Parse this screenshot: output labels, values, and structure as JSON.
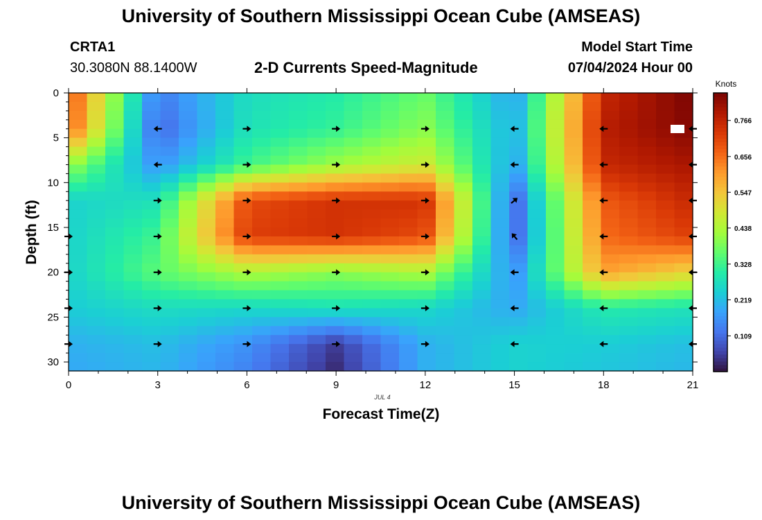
{
  "header": {
    "title": "University of Southern Mississippi Ocean Cube (AMSEAS)",
    "station": "CRTA1",
    "coords": "30.3080N  88.1400W",
    "subtitle": "2-D Currents Speed-Magnitude",
    "model_start_label": "Model Start Time",
    "model_start_value": "07/04/2024 Hour 00"
  },
  "footer": {
    "title": "University of Southern Mississippi Ocean Cube (AMSEAS)"
  },
  "chart_data": {
    "type": "heatmap",
    "title": "2-D Currents Speed-Magnitude",
    "xlabel": "Forecast Time(Z)",
    "ylabel": "Depth (ft)",
    "date_label": "JUL 4",
    "xlim": [
      0,
      21
    ],
    "ylim": [
      0,
      31
    ],
    "x_ticks": [
      0,
      3,
      6,
      9,
      12,
      15,
      18,
      21
    ],
    "y_ticks": [
      0,
      5,
      10,
      15,
      20,
      25,
      30
    ],
    "colorbar": {
      "label": "Knots",
      "range": [
        0.0,
        0.85
      ],
      "ticks": [
        "0.766",
        "0.656",
        "0.547",
        "0.438",
        "0.328",
        "0.219",
        "0.109"
      ],
      "tick_values": [
        0.766,
        0.656,
        0.547,
        0.438,
        0.328,
        0.219,
        0.109
      ]
    },
    "times": [
      0,
      3,
      6,
      9,
      12,
      15,
      18,
      21
    ],
    "depths": [
      0,
      4,
      8,
      12,
      16,
      20,
      24,
      28,
      31
    ],
    "speed_knots": [
      [
        0.7,
        0.13,
        0.27,
        0.3,
        0.37,
        0.18,
        0.76,
        0.85
      ],
      [
        0.68,
        0.1,
        0.28,
        0.32,
        0.4,
        0.2,
        0.78,
        0.84
      ],
      [
        0.42,
        0.16,
        0.33,
        0.42,
        0.48,
        0.18,
        0.76,
        0.8
      ],
      [
        0.25,
        0.28,
        0.7,
        0.74,
        0.74,
        0.1,
        0.68,
        0.76
      ],
      [
        0.25,
        0.33,
        0.72,
        0.74,
        0.7,
        0.1,
        0.66,
        0.72
      ],
      [
        0.25,
        0.36,
        0.44,
        0.4,
        0.44,
        0.16,
        0.6,
        0.52
      ],
      [
        0.24,
        0.27,
        0.26,
        0.28,
        0.26,
        0.19,
        0.3,
        0.28
      ],
      [
        0.2,
        0.22,
        0.16,
        0.05,
        0.2,
        0.25,
        0.24,
        0.22
      ],
      [
        0.19,
        0.21,
        0.14,
        0.03,
        0.2,
        0.25,
        0.23,
        0.21
      ]
    ],
    "vectors": [
      {
        "t": 3,
        "d": 4,
        "dir": "W"
      },
      {
        "t": 6,
        "d": 4,
        "dir": "E"
      },
      {
        "t": 9,
        "d": 4,
        "dir": "E"
      },
      {
        "t": 12,
        "d": 4,
        "dir": "E"
      },
      {
        "t": 15,
        "d": 4,
        "dir": "W"
      },
      {
        "t": 18,
        "d": 4,
        "dir": "W"
      },
      {
        "t": 21,
        "d": 4,
        "dir": "W"
      },
      {
        "t": 3,
        "d": 8,
        "dir": "W"
      },
      {
        "t": 6,
        "d": 8,
        "dir": "E"
      },
      {
        "t": 9,
        "d": 8,
        "dir": "E"
      },
      {
        "t": 12,
        "d": 8,
        "dir": "E"
      },
      {
        "t": 15,
        "d": 8,
        "dir": "W"
      },
      {
        "t": 18,
        "d": 8,
        "dir": "W"
      },
      {
        "t": 21,
        "d": 8,
        "dir": "W"
      },
      {
        "t": 3,
        "d": 12,
        "dir": "E"
      },
      {
        "t": 6,
        "d": 12,
        "dir": "E"
      },
      {
        "t": 9,
        "d": 12,
        "dir": "E"
      },
      {
        "t": 12,
        "d": 12,
        "dir": "E"
      },
      {
        "t": 15,
        "d": 12,
        "dir": "NE"
      },
      {
        "t": 18,
        "d": 12,
        "dir": "W"
      },
      {
        "t": 21,
        "d": 12,
        "dir": "W"
      },
      {
        "t": 0,
        "d": 16,
        "dir": "E"
      },
      {
        "t": 3,
        "d": 16,
        "dir": "E"
      },
      {
        "t": 6,
        "d": 16,
        "dir": "E"
      },
      {
        "t": 9,
        "d": 16,
        "dir": "E"
      },
      {
        "t": 12,
        "d": 16,
        "dir": "E"
      },
      {
        "t": 15,
        "d": 16,
        "dir": "NW"
      },
      {
        "t": 18,
        "d": 16,
        "dir": "W"
      },
      {
        "t": 21,
        "d": 16,
        "dir": "W"
      },
      {
        "t": 0,
        "d": 20,
        "dir": "E"
      },
      {
        "t": 3,
        "d": 20,
        "dir": "E"
      },
      {
        "t": 6,
        "d": 20,
        "dir": "E"
      },
      {
        "t": 9,
        "d": 20,
        "dir": "E"
      },
      {
        "t": 12,
        "d": 20,
        "dir": "E"
      },
      {
        "t": 15,
        "d": 20,
        "dir": "W"
      },
      {
        "t": 18,
        "d": 20,
        "dir": "W"
      },
      {
        "t": 21,
        "d": 20,
        "dir": "W"
      },
      {
        "t": 0,
        "d": 24,
        "dir": "E"
      },
      {
        "t": 3,
        "d": 24,
        "dir": "E"
      },
      {
        "t": 6,
        "d": 24,
        "dir": "E"
      },
      {
        "t": 9,
        "d": 24,
        "dir": "E"
      },
      {
        "t": 12,
        "d": 24,
        "dir": "E"
      },
      {
        "t": 15,
        "d": 24,
        "dir": "W"
      },
      {
        "t": 18,
        "d": 24,
        "dir": "W"
      },
      {
        "t": 21,
        "d": 24,
        "dir": "W"
      },
      {
        "t": 0,
        "d": 28,
        "dir": "E"
      },
      {
        "t": 3,
        "d": 28,
        "dir": "E"
      },
      {
        "t": 6,
        "d": 28,
        "dir": "E"
      },
      {
        "t": 9,
        "d": 28,
        "dir": "E"
      },
      {
        "t": 12,
        "d": 28,
        "dir": "E"
      },
      {
        "t": 15,
        "d": 28,
        "dir": "W"
      },
      {
        "t": 18,
        "d": 28,
        "dir": "W"
      },
      {
        "t": 21,
        "d": 28,
        "dir": "W"
      }
    ],
    "colors": {
      "ramp": [
        "#30123b",
        "#4145ab",
        "#4675ed",
        "#39a2fc",
        "#1bcfd4",
        "#24eca6",
        "#61fc6c",
        "#a4fc3b",
        "#d1e834",
        "#f3c63a",
        "#fe9b2d",
        "#f36315",
        "#d93806",
        "#b11901",
        "#7a0403"
      ],
      "arrow": "#000000",
      "missing": "#ffffff"
    }
  }
}
